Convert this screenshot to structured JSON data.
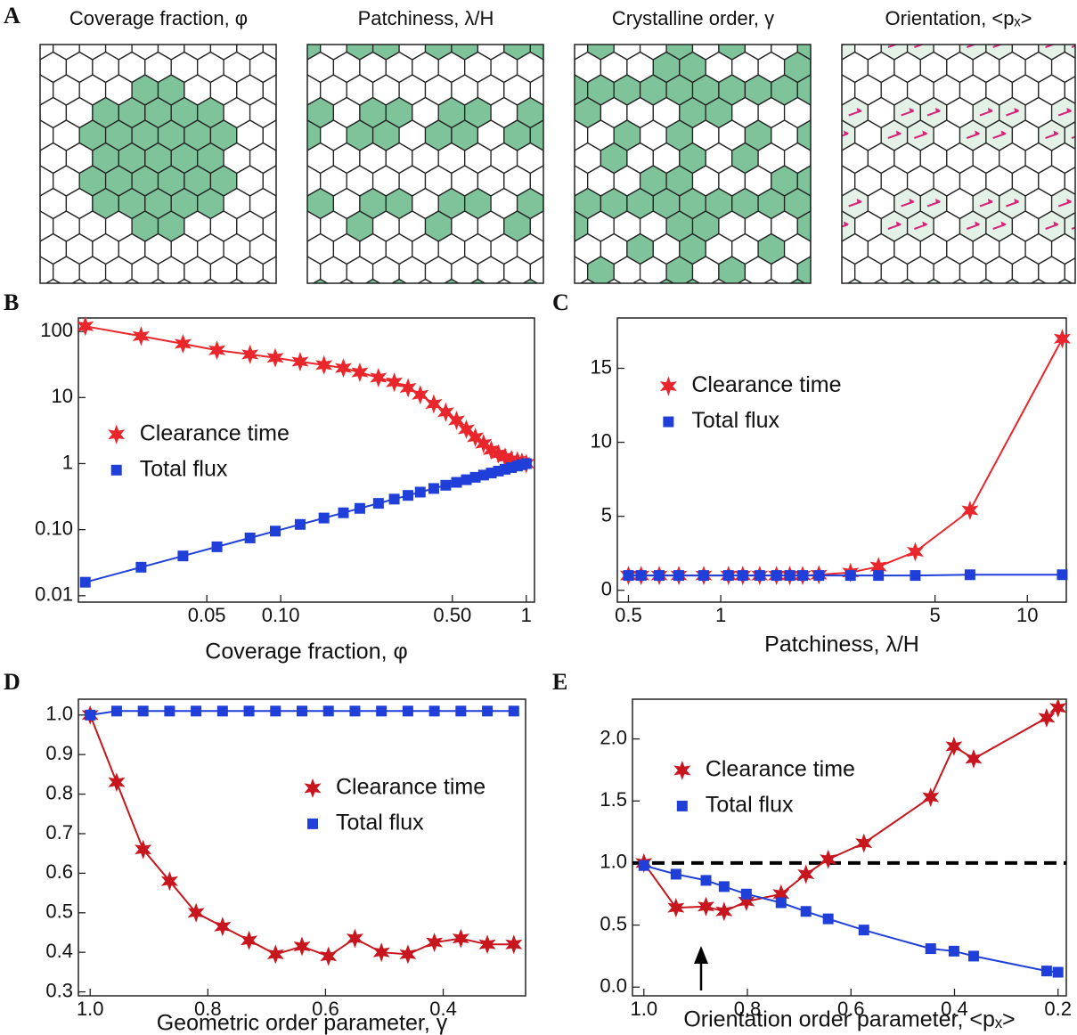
{
  "panel_a": {
    "label": "A",
    "titles": [
      "Coverage fraction, φ",
      "Patchiness, λ/H",
      "Crystalline order, γ",
      "Orientation, <pₓ>"
    ]
  },
  "chart_data": [
    {
      "type": "line",
      "label": "B",
      "xlabel": "Coverage fraction, φ",
      "xlog": true,
      "ylog": true,
      "legend": "center left",
      "xlim": [
        0.015,
        1.08
      ],
      "ylim": [
        0.008,
        160
      ],
      "xticks": [
        0.05,
        {
          "value": 0.1,
          "label": "0.10"
        },
        {
          "value": 0.5,
          "label": "0.50"
        },
        1
      ],
      "yticks": [
        0.01,
        {
          "value": 0.1,
          "label": "0.10"
        },
        1,
        10,
        100
      ],
      "x": [
        0.016,
        0.027,
        0.04,
        0.055,
        0.075,
        0.095,
        0.12,
        0.15,
        0.18,
        0.21,
        0.25,
        0.29,
        0.33,
        0.37,
        0.42,
        0.47,
        0.52,
        0.57,
        0.62,
        0.67,
        0.72,
        0.77,
        0.82,
        0.87,
        0.92,
        0.96,
        1.0
      ],
      "series": [
        {
          "name": "Clearance time",
          "color": "#e8262c",
          "marker": "star",
          "values": [
            120,
            85,
            65,
            52,
            45,
            40,
            35,
            31,
            28,
            24,
            20,
            17,
            14,
            11,
            8,
            6,
            4.5,
            3.3,
            2.5,
            2,
            1.6,
            1.4,
            1.25,
            1.15,
            1.1,
            1.05,
            1.0
          ]
        },
        {
          "name": "Total flux",
          "color": "#1f3fd8",
          "marker": "square",
          "values": [
            0.016,
            0.027,
            0.04,
            0.055,
            0.075,
            0.095,
            0.12,
            0.15,
            0.18,
            0.21,
            0.25,
            0.29,
            0.33,
            0.37,
            0.42,
            0.47,
            0.52,
            0.57,
            0.62,
            0.67,
            0.72,
            0.77,
            0.82,
            0.87,
            0.92,
            0.96,
            1.0
          ]
        }
      ]
    },
    {
      "type": "line",
      "label": "C",
      "xlabel": "Patchiness, λ/H",
      "xlog": true,
      "ylog": false,
      "legend": "upper left",
      "xlim": [
        0.46,
        13.4
      ],
      "ylim": [
        -0.8,
        18.4
      ],
      "xticks": [
        0.5,
        1,
        5,
        10
      ],
      "yticks": [
        0,
        5,
        10,
        15
      ],
      "x": [
        0.5,
        0.55,
        0.63,
        0.73,
        0.88,
        1.06,
        1.18,
        1.34,
        1.52,
        1.68,
        1.85,
        2.09,
        2.65,
        3.27,
        4.31,
        6.5,
        13.0
      ],
      "series": [
        {
          "name": "Clearance time",
          "color": "#e8262c",
          "marker": "star",
          "values": [
            1,
            1,
            1,
            1,
            1,
            1,
            1,
            1,
            1,
            1,
            1,
            1.05,
            1.2,
            1.6,
            2.6,
            5.4,
            17
          ]
        },
        {
          "name": "Total flux",
          "color": "#1f3fd8",
          "marker": "square",
          "values": [
            1,
            1,
            1,
            1,
            1,
            1,
            1,
            1,
            1,
            1,
            1,
            1,
            1,
            1,
            1,
            1.05,
            1.05
          ]
        }
      ]
    },
    {
      "type": "line",
      "label": "D",
      "xlabel": "Geometric order parameter, γ",
      "xlog": false,
      "ylog": false,
      "legend": "center right",
      "xlim": [
        1.02,
        0.26
      ],
      "ylim": [
        0.29,
        1.04
      ],
      "xticks": [
        {
          "value": 1,
          "label": "1.0"
        },
        0.8,
        0.6,
        0.4
      ],
      "yticks": [
        0.3,
        0.4,
        0.5,
        0.6,
        0.7,
        0.8,
        0.9,
        {
          "value": 1,
          "label": "1.0"
        }
      ],
      "x": [
        1.0,
        0.955,
        0.91,
        0.865,
        0.82,
        0.775,
        0.73,
        0.685,
        0.64,
        0.595,
        0.55,
        0.505,
        0.46,
        0.415,
        0.37,
        0.325,
        0.28
      ],
      "series": [
        {
          "name": "Clearance time",
          "color": "#c8161e",
          "marker": "star",
          "values": [
            1.0,
            0.83,
            0.66,
            0.58,
            0.5,
            0.465,
            0.43,
            0.395,
            0.415,
            0.39,
            0.435,
            0.4,
            0.395,
            0.425,
            0.435,
            0.42,
            0.42
          ]
        },
        {
          "name": "Total flux",
          "color": "#1f3fd8",
          "marker": "square",
          "values": [
            1.0,
            1.01,
            1.01,
            1.01,
            1.01,
            1.01,
            1.01,
            1.01,
            1.01,
            1.01,
            1.01,
            1.01,
            1.01,
            1.01,
            1.01,
            1.01,
            1.01
          ]
        }
      ]
    },
    {
      "type": "line",
      "label": "E",
      "xlabel": "Orientation order parameter, <pₓ>",
      "xlog": false,
      "ylog": false,
      "legend": "upper left",
      "xlim": [
        1.022,
        0.184
      ],
      "ylim": [
        -0.07,
        2.32
      ],
      "hline": 1,
      "xticks": [
        {
          "value": 1,
          "label": "1.0"
        },
        0.8,
        0.6,
        0.4,
        0.2
      ],
      "yticks": [
        {
          "value": 0,
          "label": "0.0"
        },
        0.5,
        {
          "value": 1,
          "label": "1.0"
        },
        1.5,
        {
          "value": 2,
          "label": "2.0"
        }
      ],
      "x": [
        1.0,
        0.938,
        0.88,
        0.845,
        0.802,
        0.735,
        0.687,
        0.644,
        0.575,
        0.446,
        0.401,
        0.363,
        0.222,
        0.2
      ],
      "series": [
        {
          "name": "Clearance time",
          "color": "#c8161e",
          "marker": "star",
          "values": [
            1.0,
            0.64,
            0.65,
            0.61,
            0.69,
            0.75,
            0.91,
            1.03,
            1.16,
            1.53,
            1.94,
            1.84,
            2.17,
            2.25
          ]
        },
        {
          "name": "Total flux",
          "color": "#1f3fd8",
          "marker": "square",
          "values": [
            0.98,
            0.91,
            0.86,
            0.81,
            0.75,
            0.68,
            0.61,
            0.55,
            0.46,
            0.31,
            0.29,
            0.25,
            0.13,
            0.12
          ]
        }
      ]
    }
  ]
}
